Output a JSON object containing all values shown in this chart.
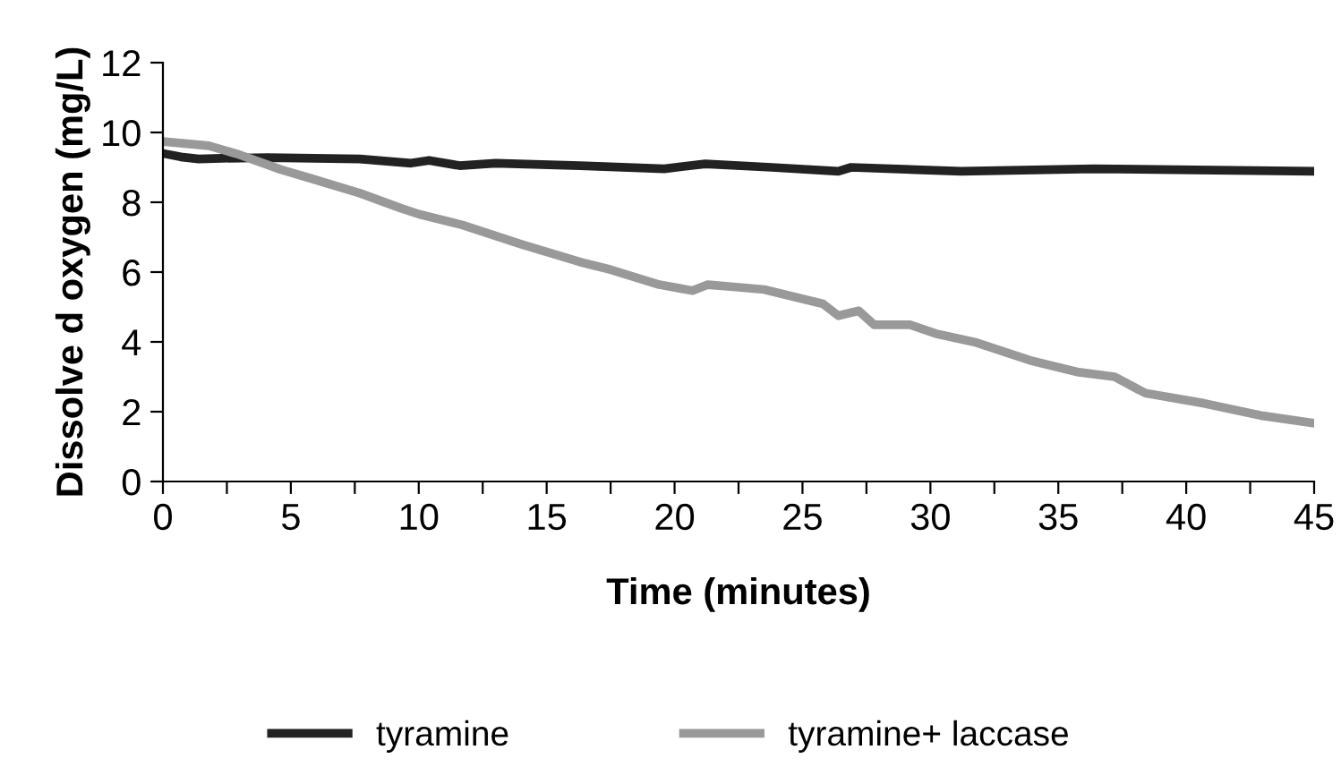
{
  "chart_data": {
    "type": "line",
    "xlabel": "Time (minutes)",
    "ylabel": "Dissolve d oxygen (mg/L)",
    "xlim": [
      0,
      45
    ],
    "ylim": [
      0,
      12
    ],
    "xticks": [
      0,
      {
        "value": 2.5,
        "label": null
      },
      5,
      {
        "value": 7.5,
        "label": null
      },
      10,
      {
        "value": 12.5,
        "label": null
      },
      15,
      {
        "value": 17.5,
        "label": null
      },
      20,
      {
        "value": 22.5,
        "label": null
      },
      25,
      {
        "value": 27.5,
        "label": null
      },
      30,
      {
        "value": 32.5,
        "label": null
      },
      35,
      {
        "value": 37.5,
        "label": null
      },
      40,
      {
        "value": 42.5,
        "label": null
      },
      45
    ],
    "yticks": [
      0,
      2,
      4,
      6,
      8,
      10,
      12
    ],
    "grid": false,
    "legend": "bottom",
    "marker": "none",
    "line_style": "solid",
    "series": [
      {
        "name": "tyramine",
        "color": "#222222",
        "x": [
          0,
          0.7,
          1.4,
          2.3,
          4.1,
          7.7,
          9.7,
          10.4,
          11.6,
          13,
          16.3,
          19.6,
          21.2,
          23.8,
          26.4,
          26.9,
          31.2,
          36.4,
          45
        ],
        "values": [
          9.4,
          9.3,
          9.24,
          9.26,
          9.28,
          9.24,
          9.12,
          9.2,
          9.05,
          9.12,
          9.05,
          8.96,
          9.1,
          9.0,
          8.89,
          9.0,
          8.89,
          8.96,
          8.89
        ]
      },
      {
        "name": "tyramine+ laccase",
        "color": "#999999",
        "x": [
          0,
          1.8,
          3,
          4.6,
          5.8,
          7.7,
          9.3,
          10,
          11.7,
          14,
          16.3,
          17.5,
          19.4,
          20.7,
          21.3,
          22.4,
          23.5,
          25.8,
          26.4,
          27.2,
          27.8,
          29.2,
          30.2,
          31.8,
          33.9,
          35.8,
          37.2,
          38.4,
          40.7,
          43,
          45
        ],
        "values": [
          9.74,
          9.62,
          9.36,
          8.94,
          8.68,
          8.26,
          7.83,
          7.66,
          7.35,
          6.8,
          6.29,
          6.07,
          5.64,
          5.47,
          5.64,
          5.57,
          5.5,
          5.09,
          4.75,
          4.89,
          4.49,
          4.49,
          4.24,
          3.98,
          3.47,
          3.13,
          3.0,
          2.53,
          2.24,
          1.88,
          1.67
        ]
      }
    ]
  }
}
